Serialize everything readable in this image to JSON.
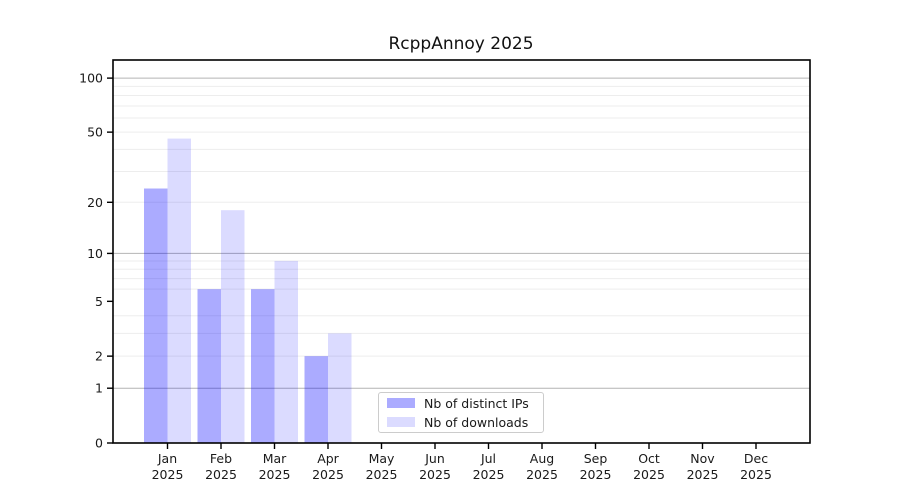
{
  "chart_data": {
    "type": "bar",
    "title": "RcppAnnoy 2025",
    "categories": [
      "Jan",
      "Feb",
      "Mar",
      "Apr",
      "May",
      "Jun",
      "Jul",
      "Aug",
      "Sep",
      "Oct",
      "Nov",
      "Dec"
    ],
    "year_line": "2025",
    "series": [
      {
        "name": "Nb of distinct IPs",
        "color": "#0000ff",
        "alpha": 0.33,
        "values": [
          24,
          6,
          6,
          2,
          0,
          0,
          0,
          0,
          0,
          0,
          0,
          0
        ]
      },
      {
        "name": "Nb of downloads",
        "color": "#0000ff",
        "alpha": 0.14,
        "values": [
          46,
          18,
          9,
          3,
          0,
          0,
          0,
          0,
          0,
          0,
          0,
          0
        ]
      }
    ],
    "yscale": "log1p",
    "ylim": [
      0,
      126
    ],
    "yticks": [
      0,
      1,
      2,
      5,
      10,
      20,
      50,
      100
    ],
    "grid_major": [
      1,
      10,
      100
    ],
    "grid_minor": [
      2,
      3,
      4,
      6,
      7,
      8,
      9,
      20,
      30,
      40,
      50,
      60,
      70,
      80,
      90
    ],
    "grid": "on",
    "legend_position": "inside-bottom-center",
    "xlabel": "",
    "ylabel": ""
  },
  "colors": {
    "grid_major": "#b4b4b4",
    "grid_minor": "#ededed",
    "axis": "#000000",
    "tick_label": "#1a1a1a",
    "background": "#ffffff"
  }
}
